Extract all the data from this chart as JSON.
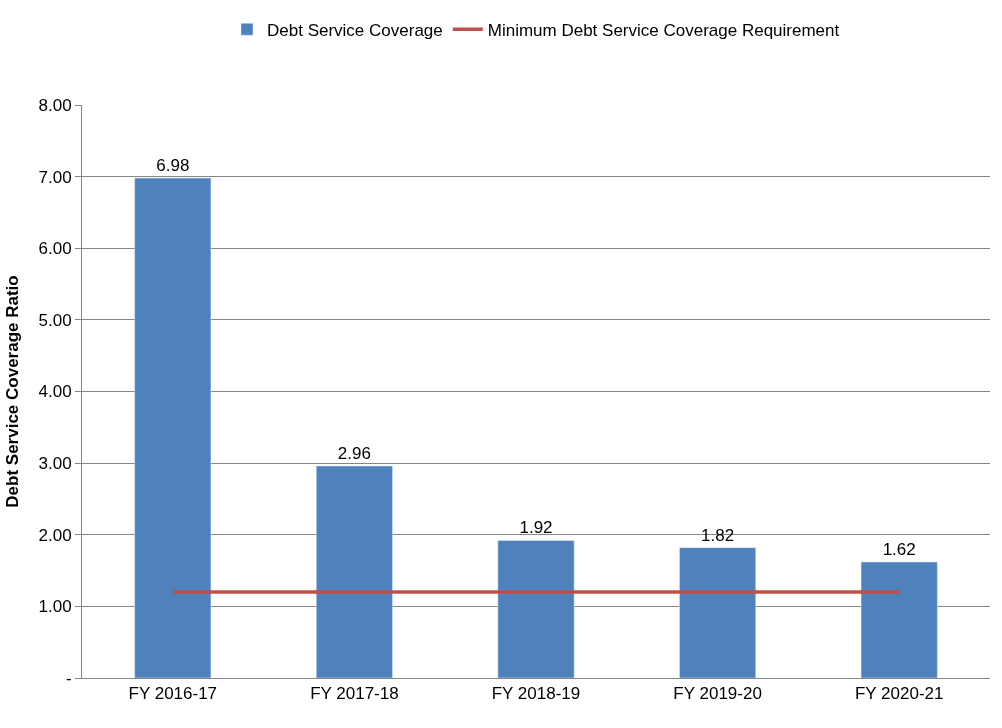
{
  "chart_data": {
    "type": "bar",
    "ylabel": "Debt Service Coverage Ratio",
    "categories": [
      "FY 2016-17",
      "FY 2017-18",
      "FY 2018-19",
      "FY 2019-20",
      "FY 2020-21"
    ],
    "series": [
      {
        "name": "Debt Service Coverage",
        "color": "#4f81bd",
        "values": [
          6.98,
          2.96,
          1.92,
          1.82,
          1.62
        ],
        "value_labels": [
          "6.98",
          "2.96",
          "1.92",
          "1.82",
          "1.62"
        ]
      },
      {
        "name": "Minimum Debt Service Coverage Requirement",
        "type": "line",
        "color": "#c0504d",
        "values": [
          1.2,
          1.2,
          1.2,
          1.2,
          1.2
        ],
        "marker": "none"
      }
    ],
    "ylim": [
      0,
      8
    ],
    "yticks": [
      {
        "value": 0,
        "label": "-"
      },
      {
        "value": 1,
        "label": "1.00"
      },
      {
        "value": 2,
        "label": "2.00"
      },
      {
        "value": 3,
        "label": "3.00"
      },
      {
        "value": 4,
        "label": "4.00"
      },
      {
        "value": 5,
        "label": "5.00"
      },
      {
        "value": 6,
        "label": "6.00"
      },
      {
        "value": 7,
        "label": "7.00"
      },
      {
        "value": 8,
        "label": "8.00"
      }
    ],
    "grid": "y",
    "legend": "top"
  }
}
